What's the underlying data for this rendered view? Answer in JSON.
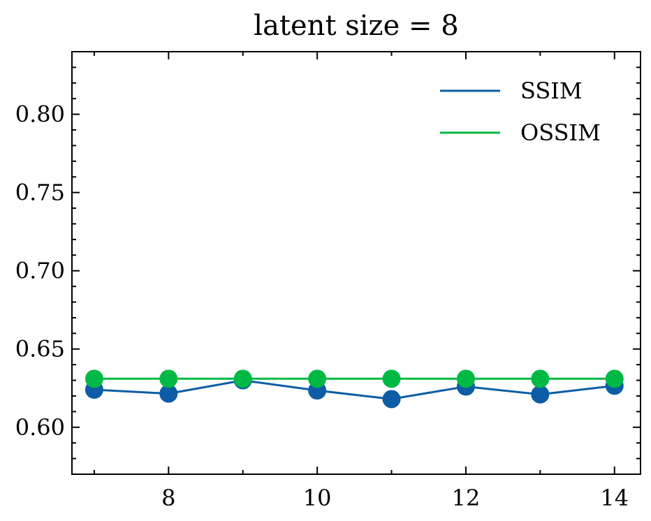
{
  "chart_data": {
    "type": "line",
    "title": "latent size = 8",
    "xlabel": "",
    "ylabel": "",
    "xlim": [
      6.7,
      14.35
    ],
    "ylim": [
      0.57,
      0.84
    ],
    "x_major_ticks": [
      8,
      10,
      12,
      14
    ],
    "x_tick_labels": [
      "8",
      "10",
      "12",
      "14"
    ],
    "x_minor_ticks": [
      7,
      9,
      11,
      13
    ],
    "y_major_ticks": [
      0.6,
      0.65,
      0.7,
      0.75,
      0.8
    ],
    "y_tick_labels": [
      "0.60",
      "0.65",
      "0.70",
      "0.75",
      "0.80"
    ],
    "y_minor_step": 0.01,
    "grid": false,
    "legend_position": "top-right",
    "x": [
      7,
      8,
      9,
      10,
      11,
      12,
      13,
      14
    ],
    "series": [
      {
        "name": "SSIM",
        "color": "#0C5DA5",
        "values": [
          0.624,
          0.6215,
          0.63,
          0.6235,
          0.618,
          0.626,
          0.621,
          0.6265
        ]
      },
      {
        "name": "OSSIM",
        "color": "#00B945",
        "values": [
          0.631,
          0.631,
          0.631,
          0.631,
          0.631,
          0.631,
          0.631,
          0.631
        ]
      }
    ]
  }
}
